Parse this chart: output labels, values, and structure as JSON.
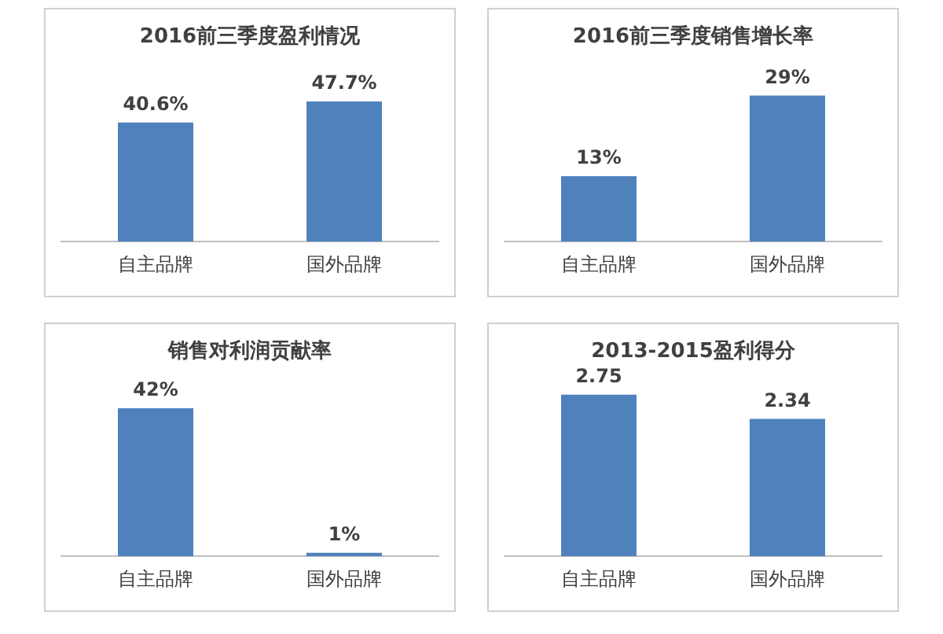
{
  "chart_data": [
    {
      "type": "bar",
      "title": "2016前三季度盈利情况",
      "categories": [
        "自主品牌",
        "国外品牌"
      ],
      "values": [
        40.6,
        47.7
      ],
      "value_labels": [
        "40.6%",
        "47.7%"
      ],
      "color": "#4f81bd",
      "tick_labels": "x"
    },
    {
      "type": "bar",
      "title": "2016前三季度销售增长率",
      "categories": [
        "自主品牌",
        "国外品牌"
      ],
      "values": [
        13,
        29
      ],
      "value_labels": [
        "13%",
        "29%"
      ],
      "color": "#4f81bd",
      "tick_labels": "x"
    },
    {
      "type": "bar",
      "title": "销售对利润贡献率",
      "categories": [
        "自主品牌",
        "国外品牌"
      ],
      "values": [
        42,
        1
      ],
      "value_labels": [
        "42%",
        "1%"
      ],
      "color": "#4f81bd",
      "tick_labels": "x"
    },
    {
      "type": "bar",
      "title": "2013-2015盈利得分",
      "categories": [
        "自主品牌",
        "国外品牌"
      ],
      "values": [
        2.75,
        2.34
      ],
      "value_labels": [
        "2.75",
        "2.34"
      ],
      "color": "#4f81bd",
      "tick_labels": "x"
    }
  ]
}
